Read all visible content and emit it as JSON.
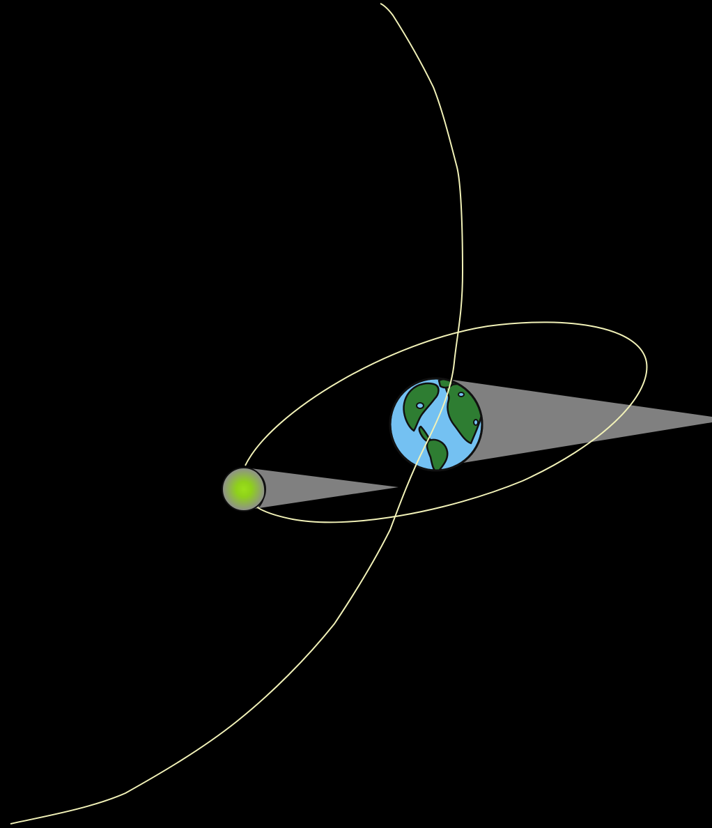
{
  "colors": {
    "background": "#000000",
    "orbit_path": "#f2f2b8",
    "shadow_cone": "#808080",
    "earth_ocean": "#74c1f2",
    "earth_land": "#2e7d32",
    "outline": "#111111",
    "moon_body": "#8f8f8f",
    "moon_glow": "#8fd11a"
  },
  "elements": {
    "earth": {
      "icon": "earth-globe-icon"
    },
    "moon": {
      "icon": "moon-icon"
    },
    "earth_shadow": {
      "icon": "shadow-cone"
    },
    "moon_shadow": {
      "icon": "shadow-cone"
    },
    "moon_orbit": {
      "icon": "ellipse-orbit"
    },
    "trajectory": {
      "icon": "curved-path"
    }
  }
}
